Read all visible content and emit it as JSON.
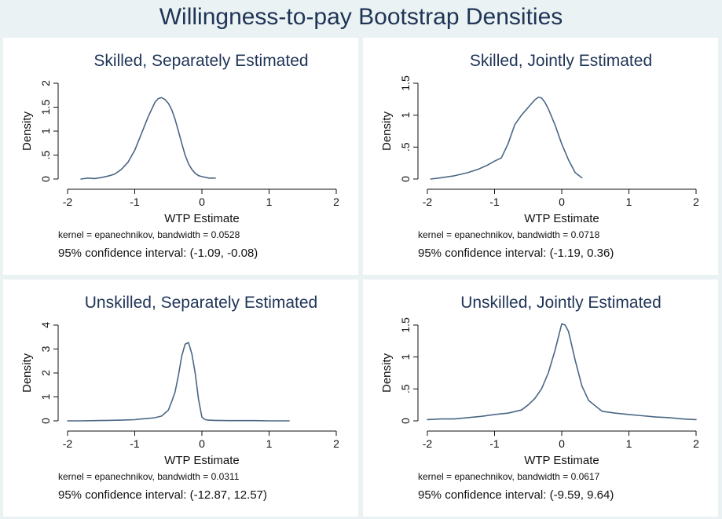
{
  "title": "Willingness-to-pay Bootstrap Densities",
  "colors": {
    "line": "#4a6785",
    "title": "#1f3456",
    "background": "#eaf2f3",
    "panel": "#ffffff"
  },
  "chart_data": [
    {
      "type": "line",
      "title": "Skilled, Separately Estimated",
      "xlabel": "WTP Estimate",
      "ylabel": "Density",
      "xlim": [
        -2,
        2
      ],
      "ylim": [
        0,
        2
      ],
      "xticks": [
        "-2",
        "-1",
        "0",
        "1",
        "2"
      ],
      "xtick_values": [
        -2,
        -1,
        0,
        1,
        2
      ],
      "yticks": [
        "0",
        ".5",
        "1",
        "1.5",
        "2"
      ],
      "ytick_values": [
        0,
        0.5,
        1,
        1.5,
        2
      ],
      "note": "kernel = epanechnikov, bandwidth = 0.0528",
      "ci": "95% confidence interval: (-1.09, -0.08)",
      "x": [
        -1.8,
        -1.7,
        -1.6,
        -1.5,
        -1.4,
        -1.3,
        -1.2,
        -1.1,
        -1.0,
        -0.9,
        -0.8,
        -0.7,
        -0.65,
        -0.6,
        -0.55,
        -0.5,
        -0.45,
        -0.4,
        -0.35,
        -0.3,
        -0.25,
        -0.2,
        -0.15,
        -0.1,
        -0.05,
        0.0,
        0.1,
        0.2
      ],
      "y": [
        0.0,
        0.02,
        0.01,
        0.03,
        0.06,
        0.1,
        0.2,
        0.35,
        0.6,
        0.95,
        1.3,
        1.6,
        1.68,
        1.7,
        1.66,
        1.58,
        1.45,
        1.25,
        1.0,
        0.75,
        0.5,
        0.32,
        0.2,
        0.12,
        0.07,
        0.05,
        0.02,
        0.02
      ]
    },
    {
      "type": "line",
      "title": "Skilled, Jointly Estimated",
      "xlabel": "WTP Estimate",
      "ylabel": "Density",
      "xlim": [
        -2,
        2
      ],
      "ylim": [
        0,
        1.5
      ],
      "xticks": [
        "-2",
        "-1",
        "0",
        "1",
        "2"
      ],
      "xtick_values": [
        -2,
        -1,
        0,
        1,
        2
      ],
      "yticks": [
        "0",
        ".5",
        "1",
        "1.5"
      ],
      "ytick_values": [
        0,
        0.5,
        1,
        1.5
      ],
      "note": "kernel = epanechnikov, bandwidth = 0.0718",
      "ci": "95% confidence interval: (-1.19, 0.36)",
      "x": [
        -1.95,
        -1.8,
        -1.6,
        -1.4,
        -1.25,
        -1.1,
        -1.0,
        -0.9,
        -0.8,
        -0.7,
        -0.6,
        -0.5,
        -0.45,
        -0.4,
        -0.35,
        -0.3,
        -0.25,
        -0.2,
        -0.1,
        0.0,
        0.1,
        0.2,
        0.3
      ],
      "y": [
        0.0,
        0.02,
        0.05,
        0.1,
        0.15,
        0.22,
        0.28,
        0.33,
        0.55,
        0.85,
        1.0,
        1.12,
        1.18,
        1.24,
        1.28,
        1.27,
        1.2,
        1.1,
        0.85,
        0.55,
        0.3,
        0.1,
        0.02
      ]
    },
    {
      "type": "line",
      "title": "Unskilled, Separately Estimated",
      "xlabel": "WTP Estimate",
      "ylabel": "Density",
      "xlim": [
        -2,
        2
      ],
      "ylim": [
        0,
        4
      ],
      "xticks": [
        "-2",
        "-1",
        "0",
        "1",
        "2"
      ],
      "xtick_values": [
        -2,
        -1,
        0,
        1,
        2
      ],
      "yticks": [
        "0",
        "1",
        "2",
        "3",
        "4"
      ],
      "ytick_values": [
        0,
        1,
        2,
        3,
        4
      ],
      "note": "kernel = epanechnikov, bandwidth = 0.0311",
      "ci": "95% confidence interval: (-12.87, 12.57)",
      "x": [
        -2.0,
        -1.8,
        -1.6,
        -1.4,
        -1.2,
        -1.0,
        -0.9,
        -0.8,
        -0.7,
        -0.6,
        -0.5,
        -0.45,
        -0.4,
        -0.35,
        -0.3,
        -0.25,
        -0.2,
        -0.15,
        -0.1,
        -0.05,
        0.0,
        0.05,
        0.1,
        0.2,
        0.4,
        0.6,
        0.8,
        1.0,
        1.3
      ],
      "y": [
        0.0,
        0.0,
        0.01,
        0.02,
        0.03,
        0.05,
        0.08,
        0.1,
        0.13,
        0.2,
        0.45,
        0.8,
        1.2,
        1.9,
        2.7,
        3.2,
        3.27,
        2.8,
        2.0,
        0.9,
        0.15,
        0.05,
        0.03,
        0.02,
        0.01,
        0.01,
        0.01,
        0.0,
        0.0
      ]
    },
    {
      "type": "line",
      "title": "Unskilled, Jointly Estimated",
      "xlabel": "WTP Estimate",
      "ylabel": "Density",
      "xlim": [
        -2,
        2
      ],
      "ylim": [
        0,
        1.5
      ],
      "xticks": [
        "-2",
        "-1",
        "0",
        "1",
        "2"
      ],
      "xtick_values": [
        -2,
        -1,
        0,
        1,
        2
      ],
      "yticks": [
        "0",
        ".5",
        "1",
        "1.5"
      ],
      "ytick_values": [
        0,
        0.5,
        1,
        1.5
      ],
      "note": "kernel = epanechnikov, bandwidth = 0.0617",
      "ci": "95% confidence interval: (-9.59, 9.64)",
      "x": [
        -2.0,
        -1.8,
        -1.6,
        -1.4,
        -1.2,
        -1.0,
        -0.8,
        -0.6,
        -0.5,
        -0.4,
        -0.3,
        -0.2,
        -0.1,
        0.0,
        0.05,
        0.1,
        0.2,
        0.3,
        0.4,
        0.6,
        0.8,
        1.0,
        1.2,
        1.4,
        1.6,
        1.8,
        2.0
      ],
      "y": [
        0.02,
        0.03,
        0.03,
        0.05,
        0.07,
        0.1,
        0.12,
        0.17,
        0.25,
        0.35,
        0.5,
        0.75,
        1.1,
        1.52,
        1.5,
        1.4,
        0.95,
        0.55,
        0.32,
        0.15,
        0.12,
        0.1,
        0.08,
        0.06,
        0.05,
        0.03,
        0.02
      ]
    }
  ]
}
